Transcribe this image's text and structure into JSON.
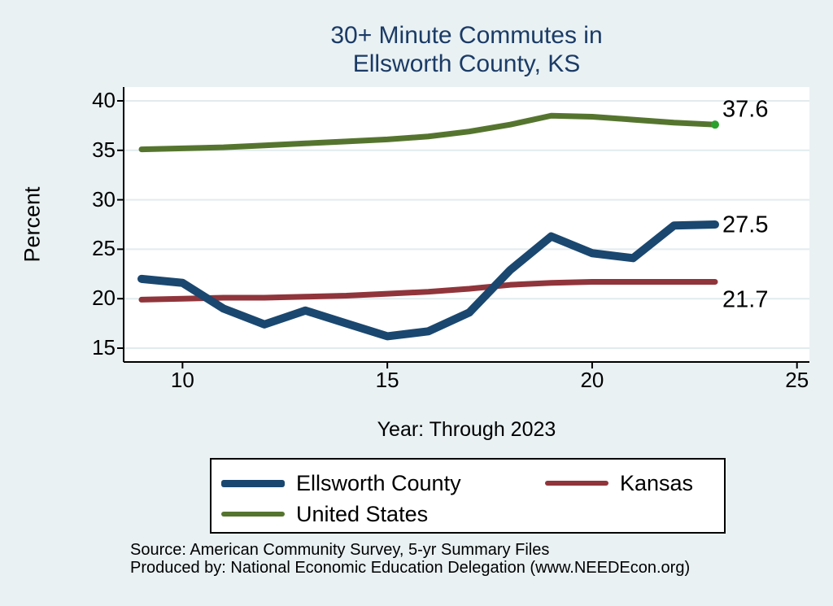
{
  "page": {
    "background": "#E9F1F3",
    "plot_background": "#FFFFFF",
    "gridline_color": "#E2EBED",
    "axis_color": "#000000"
  },
  "title": {
    "line1": "30+ Minute Commutes in",
    "line2": "Ellsworth County, KS",
    "color": "#1B3B66"
  },
  "chart_data": {
    "type": "line",
    "title": "30+ Minute Commutes in Ellsworth County, KS",
    "xlabel": "Year: Through 2023",
    "ylabel": "Percent",
    "x": [
      9,
      10,
      11,
      12,
      13,
      14,
      15,
      16,
      17,
      18,
      19,
      20,
      21,
      22,
      23
    ],
    "x_ticks": [
      10,
      15,
      20,
      25
    ],
    "y_ticks": [
      15,
      20,
      25,
      30,
      35,
      40
    ],
    "x_range": [
      8.55,
      25.35
    ],
    "y_range": [
      13.6,
      41.4
    ],
    "grid": "horizontal",
    "legend_position": "bottom",
    "series": [
      {
        "name": "Ellsworth County",
        "color": "#1A476F",
        "line_width": 10,
        "end_label": "27.5",
        "values": [
          22.0,
          21.6,
          19.0,
          17.4,
          18.8,
          17.5,
          16.2,
          16.7,
          18.6,
          22.9,
          26.3,
          24.6,
          24.1,
          27.4,
          27.5
        ]
      },
      {
        "name": "Kansas",
        "color": "#90353B",
        "line_width": 7,
        "end_label": "21.7",
        "values": [
          19.9,
          20.0,
          20.1,
          20.1,
          20.2,
          20.3,
          20.5,
          20.7,
          21.0,
          21.4,
          21.6,
          21.7,
          21.7,
          21.7,
          21.7
        ]
      },
      {
        "name": "United States",
        "color": "#55752F",
        "line_width": 7,
        "end_label": "37.6",
        "end_marker_color": "#2CA02C",
        "values": [
          35.1,
          35.2,
          35.3,
          35.5,
          35.7,
          35.9,
          36.1,
          36.4,
          36.9,
          37.6,
          38.5,
          38.4,
          38.1,
          37.8,
          37.6
        ]
      }
    ]
  },
  "legend": {
    "items": [
      {
        "label": "Ellsworth County",
        "color": "#1A476F",
        "swatch_height": 9
      },
      {
        "label": "Kansas",
        "color": "#90353B",
        "swatch_height": 6
      },
      {
        "label": "United States",
        "color": "#55752F",
        "swatch_height": 6
      }
    ]
  },
  "footer": {
    "line1": "Source: American Community Survey, 5-yr Summary Files",
    "line2": "Produced by: National Economic Education Delegation (www.NEEDEcon.org)"
  }
}
